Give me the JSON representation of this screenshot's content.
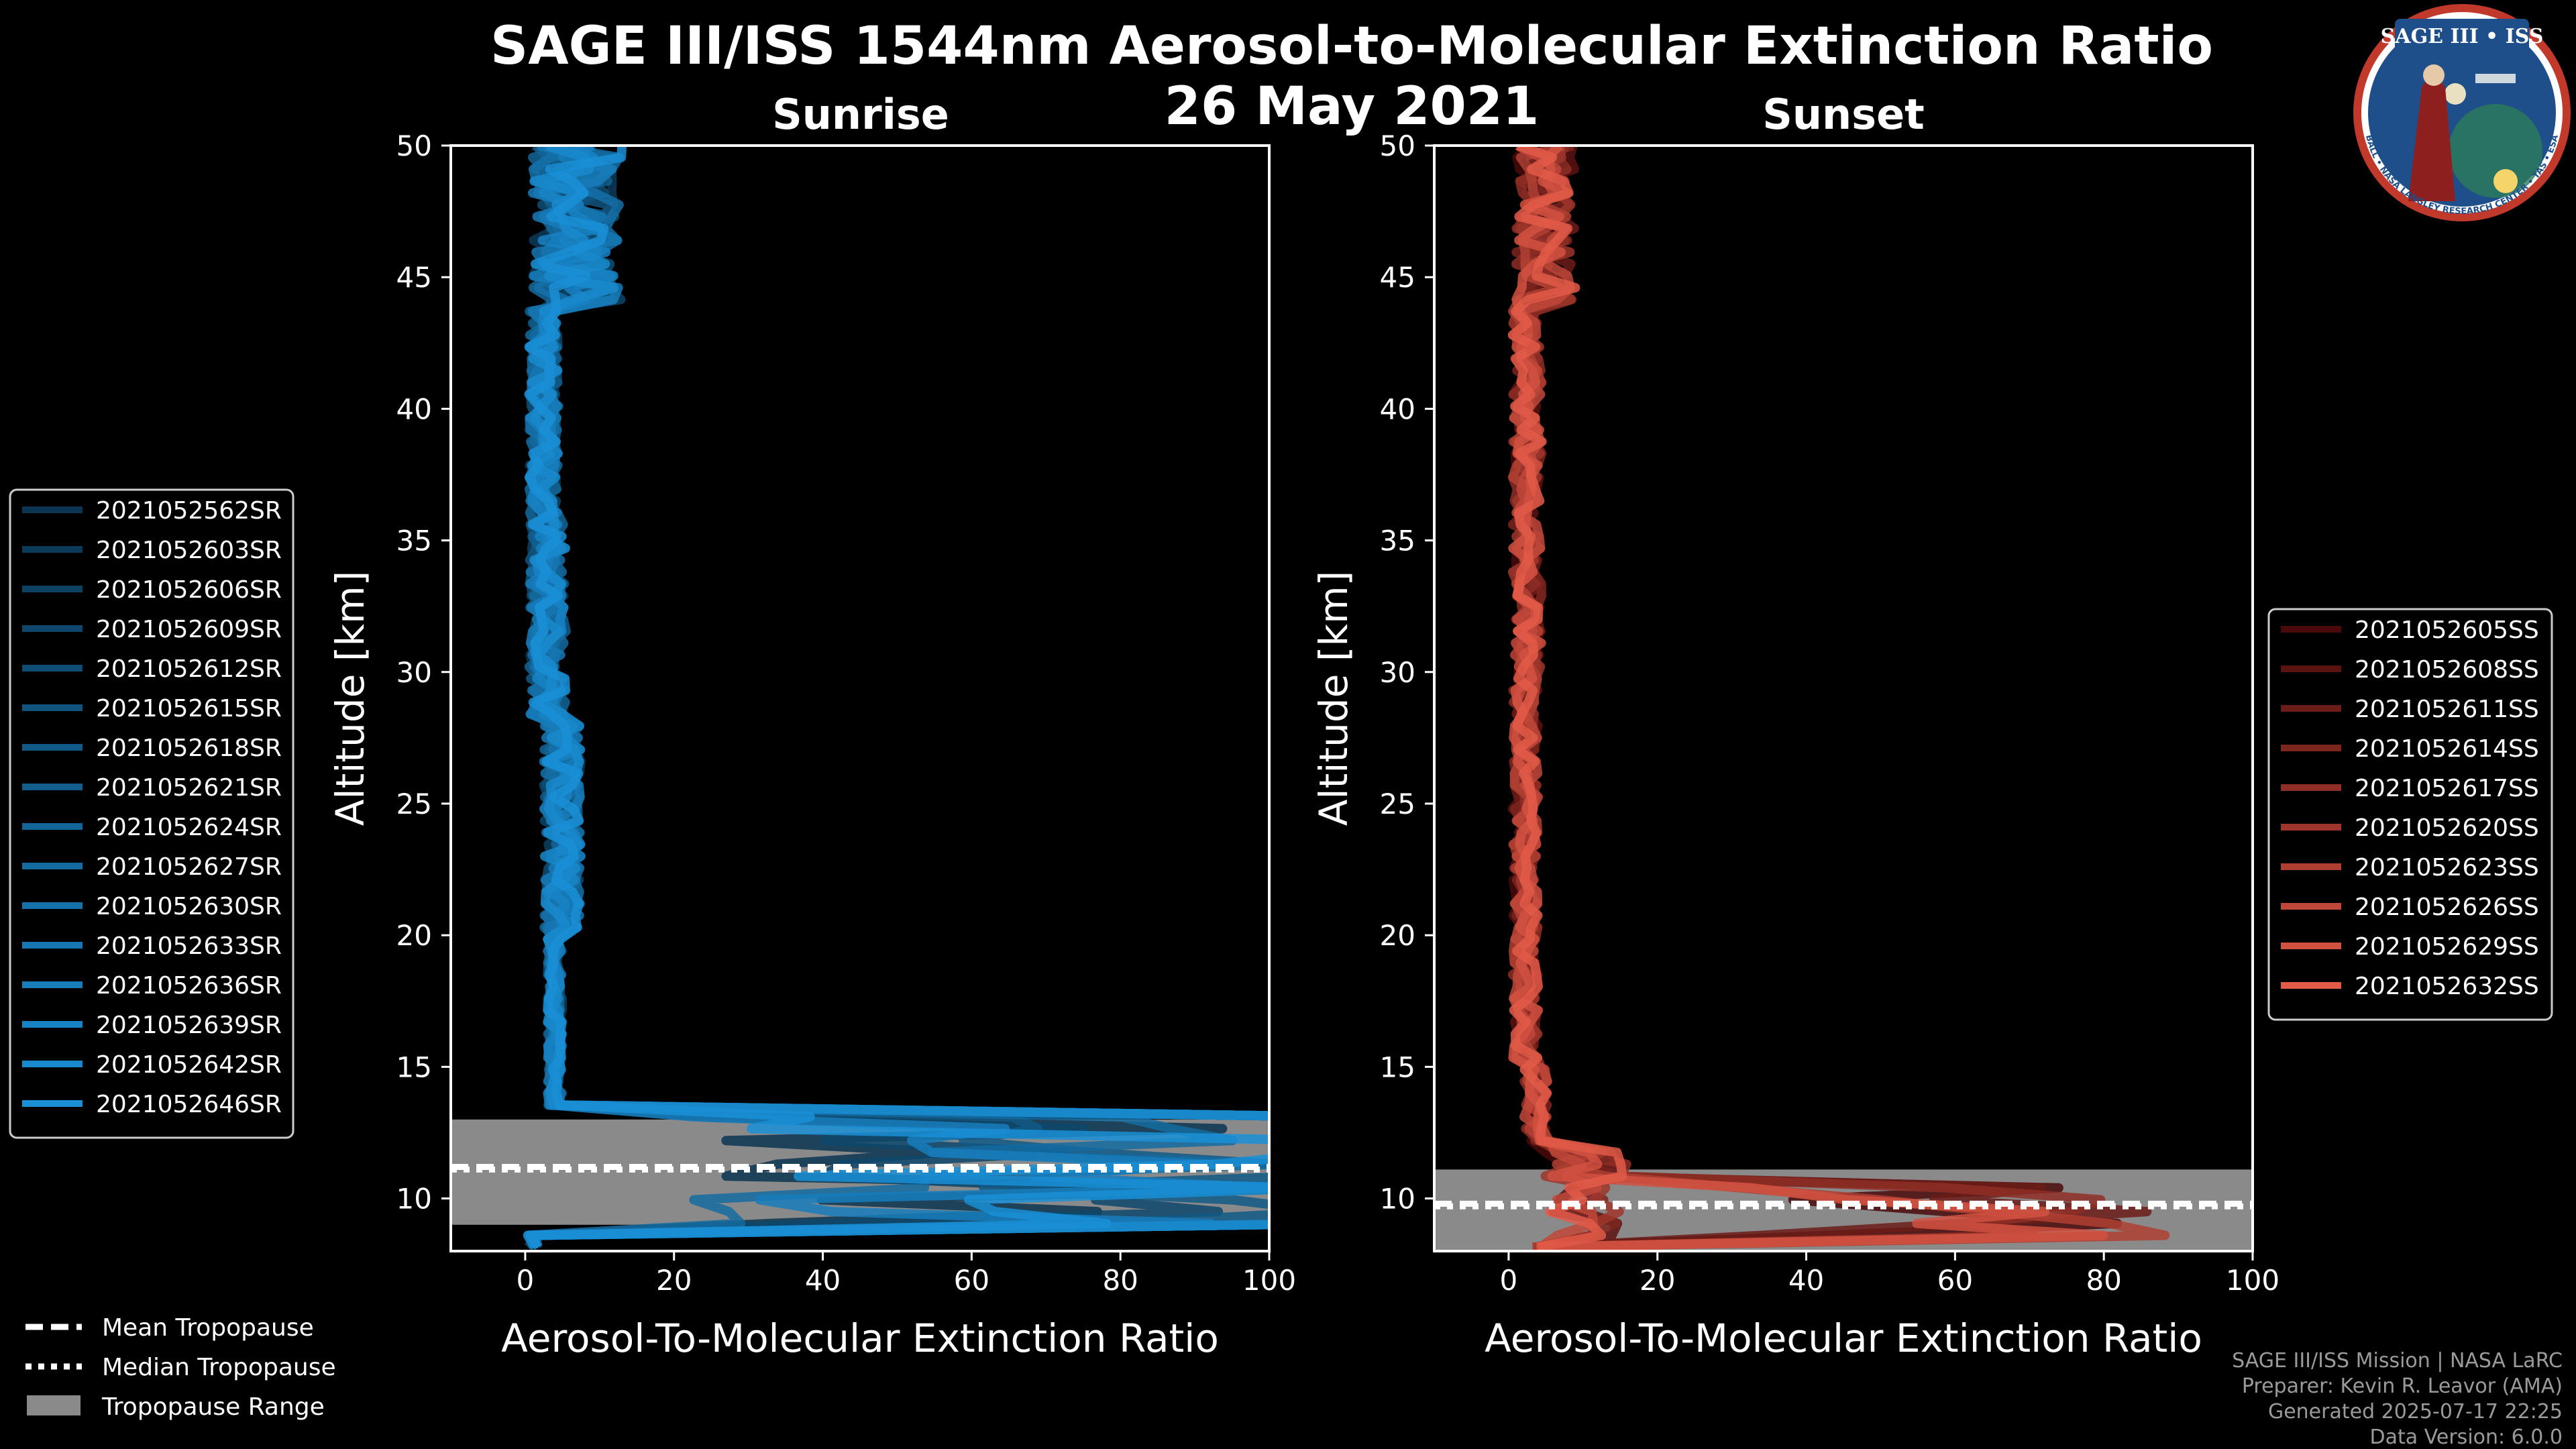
{
  "header": {
    "title": "SAGE III/ISS 1544nm Aerosol-to-Molecular Extinction Ratio",
    "date": "26 May 2021"
  },
  "logo": {
    "text": "SAGE III • ISS",
    "ring_text": "BALL • NASA LANGLEY RESEARCH CENTER • TAS • ESA"
  },
  "footer": {
    "line1": "SAGE III/ISS Mission | NASA LaRC",
    "line2": "Preparer: Kevin R. Leavor (AMA)",
    "line3": "Generated 2025-07-17 22:25",
    "line4": "Data Version: 6.0.0"
  },
  "tropo_legend": {
    "mean": "Mean Tropopause",
    "median": "Median Tropopause",
    "range": "Tropopause Range"
  },
  "colors": {
    "background": "#000000",
    "sunrise_line": "#1a8fd6",
    "sunset_line": "#e25a48",
    "tropo_range": "#8a8a8a"
  },
  "chart_data": [
    {
      "type": "line",
      "title": "Sunrise",
      "xlabel": "Aerosol-To-Molecular Extinction Ratio",
      "ylabel": "Altitude [km]",
      "xlim": [
        -10,
        100
      ],
      "ylim": [
        8,
        50
      ],
      "xticks": [
        "0",
        "20",
        "40",
        "60",
        "80",
        "100"
      ],
      "yticks": [
        "10",
        "15",
        "20",
        "25",
        "30",
        "35",
        "40",
        "45",
        "50"
      ],
      "legend_position": "left",
      "tropopause": {
        "mean": 11.2,
        "median": 11.1,
        "range": [
          9.0,
          13.0
        ]
      },
      "series": [
        {
          "name": "2021052562SR"
        },
        {
          "name": "2021052603SR"
        },
        {
          "name": "2021052606SR"
        },
        {
          "name": "2021052609SR"
        },
        {
          "name": "2021052612SR"
        },
        {
          "name": "2021052615SR"
        },
        {
          "name": "2021052618SR"
        },
        {
          "name": "2021052621SR"
        },
        {
          "name": "2021052624SR"
        },
        {
          "name": "2021052627SR"
        },
        {
          "name": "2021052630SR"
        },
        {
          "name": "2021052633SR"
        },
        {
          "name": "2021052636SR"
        },
        {
          "name": "2021052639SR"
        },
        {
          "name": "2021052642SR"
        },
        {
          "name": "2021052646SR"
        }
      ]
    },
    {
      "type": "line",
      "title": "Sunset",
      "xlabel": "Aerosol-To-Molecular Extinction Ratio",
      "ylabel": "Altitude [km]",
      "xlim": [
        -10,
        100
      ],
      "ylim": [
        8,
        50
      ],
      "xticks": [
        "0",
        "20",
        "40",
        "60",
        "80",
        "100"
      ],
      "yticks": [
        "10",
        "15",
        "20",
        "25",
        "30",
        "35",
        "40",
        "45",
        "50"
      ],
      "legend_position": "right",
      "tropopause": {
        "mean": 9.8,
        "median": 9.7,
        "range": [
          8.0,
          11.1
        ]
      },
      "series": [
        {
          "name": "2021052605SS"
        },
        {
          "name": "2021052608SS"
        },
        {
          "name": "2021052611SS"
        },
        {
          "name": "2021052614SS"
        },
        {
          "name": "2021052617SS"
        },
        {
          "name": "2021052620SS"
        },
        {
          "name": "2021052623SS"
        },
        {
          "name": "2021052626SS"
        },
        {
          "name": "2021052629SS"
        },
        {
          "name": "2021052632SS"
        }
      ]
    }
  ]
}
